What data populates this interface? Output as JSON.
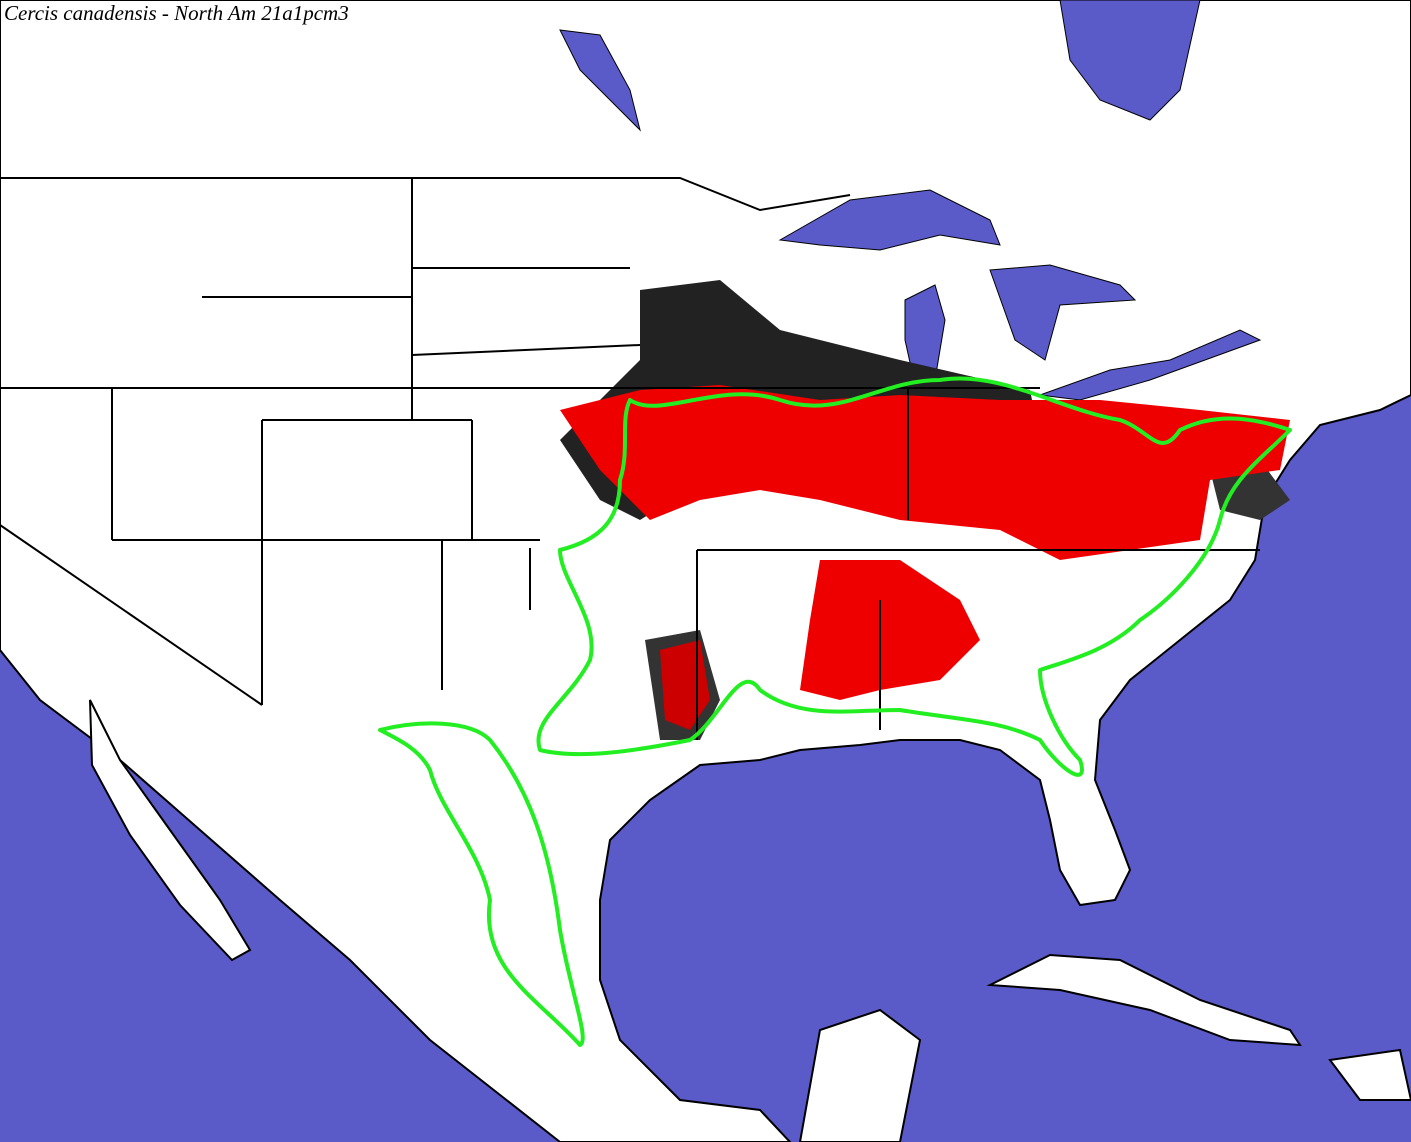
{
  "map": {
    "title": "Cercis canadensis - North Am 21a1pcm3"
  }
}
